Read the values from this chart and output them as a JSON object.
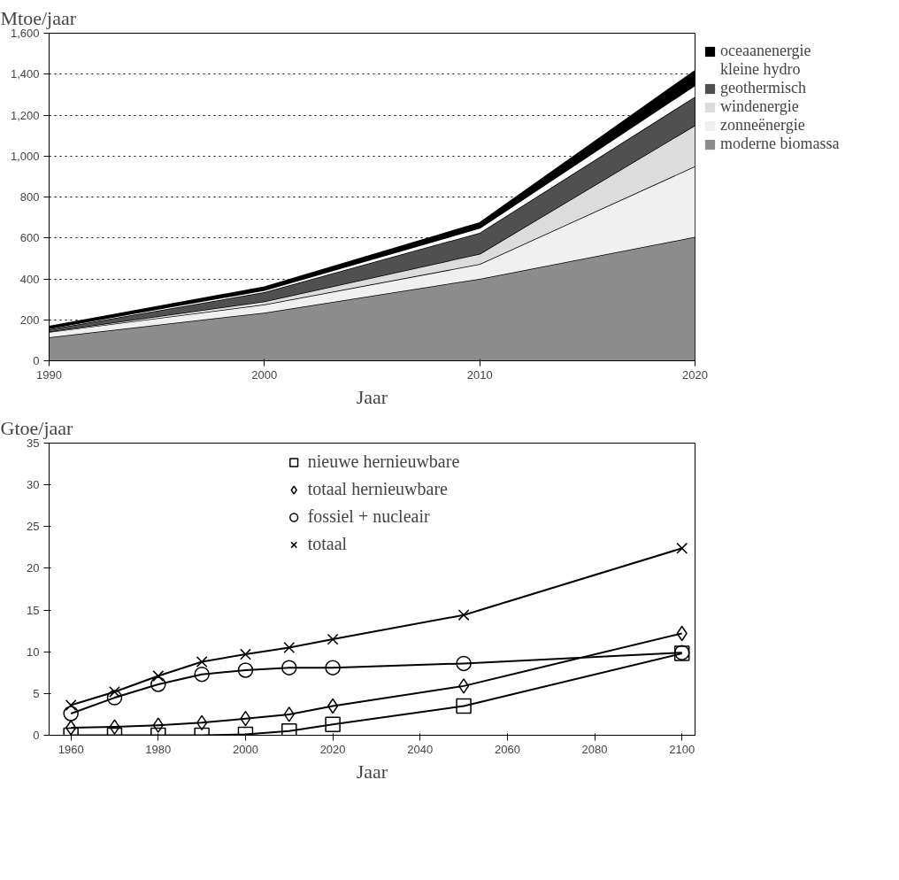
{
  "chart_data": [
    {
      "type": "area",
      "stacked": true,
      "xlabel": "Jaar",
      "ylabel": "Mtoe/jaar",
      "x": [
        1990,
        2000,
        2010,
        2020
      ],
      "xlim": [
        1990,
        2020
      ],
      "xticks": [
        1990,
        2000,
        2010,
        2020
      ],
      "ylim": [
        0,
        1600
      ],
      "yticks": [
        0,
        200,
        400,
        600,
        800,
        {
          "value": 1000,
          "label": "1,000"
        },
        {
          "value": 1200,
          "label": "1,200"
        },
        {
          "value": 1400,
          "label": "1,400"
        },
        {
          "value": 1600,
          "label": "1,600"
        }
      ],
      "grid": "y",
      "legend": "top right",
      "series": [
        {
          "name": "moderne biomassa",
          "color": "#8c8c8c",
          "values": [
            115,
            235,
            400,
            605
          ]
        },
        {
          "name": "zonneënergie",
          "color": "#f0f0f0",
          "values": [
            25,
            40,
            72,
            345
          ]
        },
        {
          "name": "windenergie",
          "color": "#dcdcdc",
          "values": [
            3,
            15,
            50,
            200
          ]
        },
        {
          "name": "geothermisch",
          "color": "#505050",
          "values": [
            10,
            45,
            103,
            140
          ]
        },
        {
          "name": "kleine hydro",
          "color": "#ffffff",
          "values": [
            5,
            10,
            23,
            55
          ]
        },
        {
          "name": "oceaanenergie",
          "color": "#000000",
          "values": [
            10,
            15,
            26,
            72
          ]
        }
      ]
    },
    {
      "type": "line",
      "xlabel": "Jaar",
      "ylabel": "Gtoe/jaar",
      "x": [
        1960,
        1970,
        1980,
        1990,
        2000,
        2010,
        2020,
        2050,
        2100
      ],
      "xlim": [
        1955,
        2103
      ],
      "xticks": [
        1960,
        1980,
        2000,
        2020,
        2040,
        2060,
        2080,
        2100
      ],
      "ylim": [
        0,
        35
      ],
      "yticks": [
        0,
        5,
        10,
        15,
        20,
        25,
        30,
        35
      ],
      "legend": "top",
      "line_style": "solid",
      "series": [
        {
          "name": "nieuwe hernieuwbare",
          "color": "#000000",
          "marker": "square",
          "values": [
            0,
            0,
            0,
            0,
            0.1,
            0.5,
            1.3,
            3.5,
            9.8
          ]
        },
        {
          "name": "totaal hernieuwbare",
          "color": "#000000",
          "marker": "diamond",
          "values": [
            0.9,
            1.0,
            1.2,
            1.5,
            2.0,
            2.5,
            3.5,
            5.9,
            12.2
          ]
        },
        {
          "name": "fossiel + nucleair",
          "color": "#000000",
          "marker": "circle",
          "values": [
            2.6,
            4.5,
            6.1,
            7.3,
            7.8,
            8.1,
            8.1,
            8.6,
            9.9
          ]
        },
        {
          "name": "totaal",
          "color": "#000000",
          "marker": "x",
          "values": [
            3.6,
            5.2,
            7.1,
            8.8,
            9.7,
            10.5,
            11.5,
            14.4,
            22.4
          ]
        }
      ]
    }
  ]
}
